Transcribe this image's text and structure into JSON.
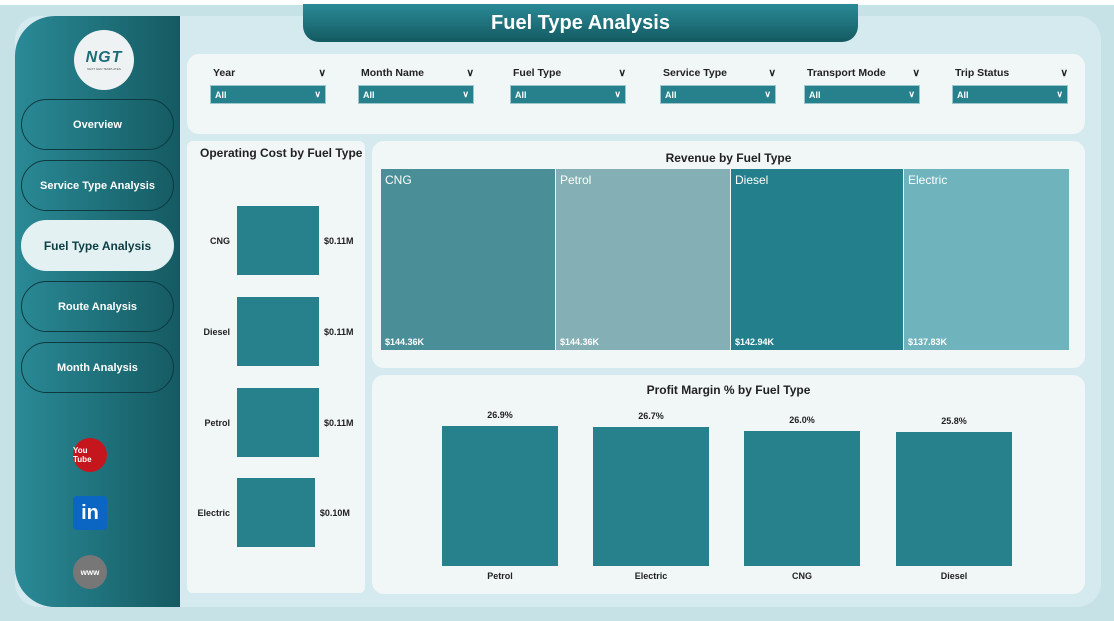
{
  "title": "Fuel Type Analysis",
  "logo": {
    "text": "NGT",
    "subtitle": "NEXT GEN TEMPLATES"
  },
  "nav": [
    {
      "label": "Overview"
    },
    {
      "label": "Service Type Analysis"
    },
    {
      "label": "Fuel Type Analysis",
      "active": true
    },
    {
      "label": "Route Analysis"
    },
    {
      "label": "Month Analysis"
    }
  ],
  "social": [
    {
      "icon": "youtube-icon",
      "label": "You Tube",
      "color": "#c4161c"
    },
    {
      "icon": "linkedin-icon",
      "label": "in",
      "color": "#0a66c2"
    },
    {
      "icon": "globe-icon",
      "label": "www",
      "color": "#777777"
    }
  ],
  "filters": [
    {
      "label": "Year",
      "value": "All"
    },
    {
      "label": "Month Name",
      "value": "All"
    },
    {
      "label": "Fuel Type",
      "value": "All"
    },
    {
      "label": "Service Type",
      "value": "All"
    },
    {
      "label": "Transport Mode",
      "value": "All"
    },
    {
      "label": "Trip Status",
      "value": "All"
    }
  ],
  "operating_cost": {
    "title": "Operating Cost by Fuel Type",
    "type": "bar",
    "categories": [
      "CNG",
      "Diesel",
      "Petrol",
      "Electric"
    ],
    "values": [
      0.11,
      0.11,
      0.11,
      0.1
    ],
    "labels": [
      "$0.11M",
      "$0.11M",
      "$0.11M",
      "$0.10M"
    ]
  },
  "revenue": {
    "title": "Revenue by Fuel Type",
    "type": "treemap",
    "categories": [
      "CNG",
      "Petrol",
      "Diesel",
      "Electric"
    ],
    "labels": [
      "$144.36K",
      "$144.36K",
      "$142.94K",
      "$137.83K"
    ],
    "colors": [
      "#4a8f98",
      "#84b0b5",
      "#237f8b",
      "#6fb4bd"
    ]
  },
  "profit_margin": {
    "title": "Profit Margin % by Fuel Type",
    "type": "bar",
    "categories": [
      "Petrol",
      "Electric",
      "CNG",
      "Diesel"
    ],
    "values": [
      26.9,
      26.7,
      26.0,
      25.8
    ],
    "labels": [
      "26.9%",
      "26.7%",
      "26.0%",
      "25.8%"
    ]
  }
}
